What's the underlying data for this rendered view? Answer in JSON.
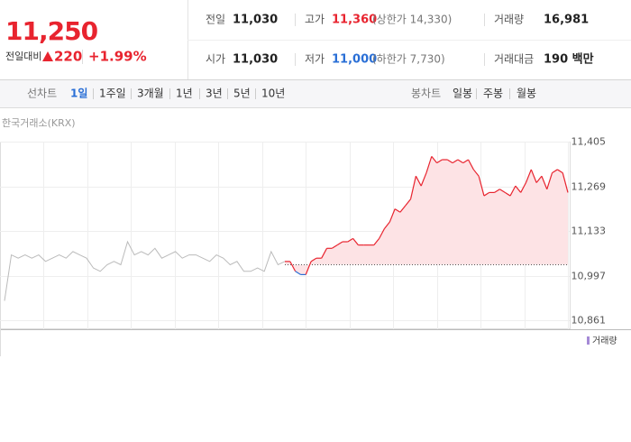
{
  "quote": {
    "price": "11,250",
    "change_label": "전일대비",
    "change": "220",
    "change_pct": "+1.99%"
  },
  "stats": [
    {
      "label": "전일",
      "value": "11,030"
    },
    {
      "label": "고가",
      "value": "11,360",
      "note": "(상한가 14,330)"
    },
    {
      "label": "거래량",
      "value": "16,981"
    },
    {
      "label": "시가",
      "value": "11,030"
    },
    {
      "label": "저가",
      "value": "11,000",
      "note": "(하한가 7,730)"
    },
    {
      "label": "거래대금",
      "value": "190 백만"
    }
  ],
  "line_tabs": {
    "label": "선차트",
    "items": [
      "1일",
      "1주일",
      "3개월",
      "1년",
      "3년",
      "5년",
      "10년"
    ],
    "active": 0
  },
  "candle_tabs": {
    "label": "봉차트",
    "items": [
      "일봉",
      "주봉",
      "월봉"
    ]
  },
  "chart": {
    "type": "line",
    "source": "한국거래소(KRX)",
    "volume_label": "거래량",
    "ylim": [
      10861,
      11405
    ],
    "yticks": [
      {
        "value": 11405,
        "label": "11,405"
      },
      {
        "value": 11269,
        "label": "11,269"
      },
      {
        "value": 11133,
        "label": "11,133"
      },
      {
        "value": 10997,
        "label": "10,997"
      },
      {
        "value": 10861,
        "label": "10,861"
      }
    ],
    "base": 11030,
    "previous": {
      "color": "#bbbbbb",
      "values": [
        10920,
        11060,
        11050,
        11060,
        11050,
        11060,
        11040,
        11050,
        11060,
        11050,
        11070,
        11060,
        11050,
        11020,
        11010,
        11030,
        11040,
        11030,
        11100,
        11060,
        11070,
        11060,
        11080,
        11050,
        11060,
        11070,
        11050,
        11060,
        11060,
        11050,
        11040,
        11060,
        11050,
        11030,
        11040,
        11010,
        11010,
        11020,
        11010,
        11070,
        11030,
        11040
      ]
    },
    "today": {
      "up_color": "#e8242f",
      "down_color": "#2a6fd6",
      "fill": "#fde3e5",
      "values": [
        11040,
        11040,
        11010,
        11000,
        11000,
        11040,
        11050,
        11050,
        11080,
        11080,
        11090,
        11100,
        11100,
        11110,
        11090,
        11090,
        11090,
        11090,
        11110,
        11140,
        11160,
        11200,
        11190,
        11210,
        11230,
        11300,
        11270,
        11310,
        11360,
        11340,
        11350,
        11350,
        11340,
        11350,
        11340,
        11350,
        11320,
        11300,
        11240,
        11250,
        11250,
        11260,
        11250,
        11240,
        11270,
        11250,
        11280,
        11320,
        11280,
        11300,
        11260,
        11310,
        11320,
        11310,
        11250
      ]
    }
  }
}
